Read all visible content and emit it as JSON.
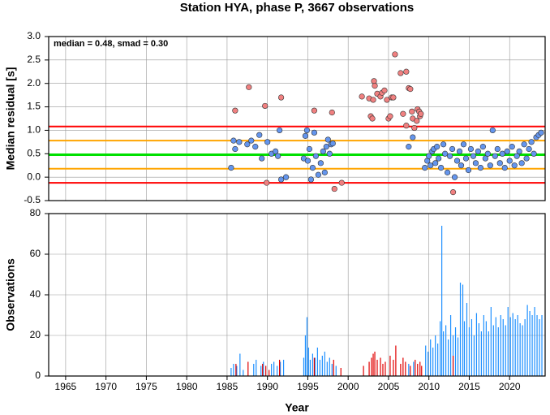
{
  "title": "Station HYA, phase P, 3667 observations",
  "chart_data": [
    {
      "type": "scatter",
      "ylabel": "Median residual [s]",
      "annotation": "median = 0.48, smad = 0.30",
      "xlim": [
        1962.9,
        2024.4
      ],
      "ylim": [
        -0.5,
        3.0
      ],
      "yticks": [
        -0.5,
        {
          "value": 0,
          "label": "0.0"
        },
        0.5,
        {
          "value": 1,
          "label": "1.0"
        },
        1.5,
        {
          "value": 2,
          "label": "2.0"
        },
        2.5,
        {
          "value": 3,
          "label": "3.0"
        }
      ],
      "grid": true,
      "hlines": [
        {
          "value": 0.48,
          "color": "#00e000"
        },
        {
          "value": 0.18,
          "color": "#ffa500"
        },
        {
          "value": 0.78,
          "color": "#ffa500"
        },
        {
          "value": -0.12,
          "color": "#ff0000"
        },
        {
          "value": 1.08,
          "color": "#ff0000"
        }
      ],
      "series": [
        {
          "color": "#6495ed",
          "x": [
            1985.5,
            1985.8,
            1986,
            1986.5,
            1987.5,
            1988,
            1988.5,
            1989,
            1989.3,
            1990,
            1990.5,
            1991,
            1991.3,
            1991.5,
            1991.7,
            1992.3,
            1994.5,
            1994.7,
            1994.9,
            1995,
            1995.2,
            1995.4,
            1995.6,
            1995.8,
            1996,
            1996.3,
            1996.6,
            1996.9,
            1997.1,
            1997.3,
            1997.5,
            1997.7,
            1997.9,
            1998.1,
            2007.5,
            2008,
            2009.5,
            2009.8,
            2010,
            2010.2,
            2010.4,
            2010.6,
            2010.8,
            2011,
            2011.2,
            2011.5,
            2011.8,
            2012,
            2012.3,
            2012.6,
            2012.9,
            2013.2,
            2013.5,
            2013.8,
            2014,
            2014.3,
            2014.6,
            2014.9,
            2015.2,
            2015.5,
            2015.8,
            2016.1,
            2016.4,
            2016.7,
            2017,
            2017.3,
            2017.6,
            2017.9,
            2018.2,
            2018.5,
            2018.8,
            2019.1,
            2019.4,
            2019.7,
            2020,
            2020.3,
            2020.6,
            2020.9,
            2021.2,
            2021.5,
            2021.8,
            2022.1,
            2022.4,
            2022.7,
            2023,
            2023.3,
            2023.6,
            2023.9
          ],
          "values": [
            0.2,
            0.78,
            0.6,
            0.75,
            0.7,
            0.78,
            0.65,
            0.9,
            0.4,
            0.75,
            0.5,
            0.55,
            0.45,
            1.0,
            -0.05,
            0.0,
            0.4,
            0.88,
            1.0,
            0.35,
            0.6,
            -0.05,
            0.2,
            0.95,
            0.45,
            0.05,
            0.3,
            0.55,
            0.1,
            0.65,
            0.8,
            0.5,
            0.7,
            0.72,
            0.65,
            0.85,
            0.2,
            0.35,
            0.45,
            0.25,
            0.55,
            0.6,
            0.3,
            0.65,
            0.4,
            0.2,
            0.7,
            0.5,
            0.1,
            0.45,
            0.6,
            0.0,
            0.35,
            0.55,
            0.25,
            0.7,
            0.4,
            0.15,
            0.6,
            0.45,
            0.3,
            0.55,
            0.2,
            0.65,
            0.4,
            0.5,
            0.25,
            1.0,
            0.45,
            0.6,
            0.3,
            0.5,
            0.2,
            0.55,
            0.35,
            0.65,
            0.25,
            0.45,
            0.55,
            0.3,
            0.7,
            0.4,
            0.6,
            0.75,
            0.5,
            0.85,
            0.9,
            0.95
          ]
        },
        {
          "color": "#f08080",
          "x": [
            1986,
            1987.7,
            1989.7,
            1991.7,
            1989.9,
            1995.8,
            1998,
            1998.3,
            1999.2,
            2001.7,
            2002.6,
            2002.8,
            2003,
            2003.1,
            2003.2,
            2003.3,
            2003.6,
            2004,
            2004.2,
            2004.5,
            2004.8,
            2005,
            2005.2,
            2005.4,
            2005.6,
            2005.8,
            2006.5,
            2006.8,
            2007.2,
            2007.5,
            2007.7,
            2007.9,
            2008,
            2008.5,
            2008.6,
            2008.8,
            2008.9,
            2009,
            2013,
            2007.2,
            2008.2
          ],
          "values": [
            1.42,
            1.92,
            1.52,
            1.7,
            -0.12,
            1.42,
            1.38,
            -0.25,
            -0.12,
            1.72,
            1.68,
            1.3,
            1.25,
            1.65,
            2.05,
            1.95,
            1.78,
            1.72,
            1.8,
            1.85,
            1.65,
            1.25,
            1.3,
            1.7,
            1.7,
            2.62,
            2.22,
            1.35,
            2.25,
            1.9,
            1.88,
            1.4,
            1.25,
            1.2,
            1.45,
            1.4,
            1.3,
            1.35,
            -0.32,
            1.1,
            1.05
          ]
        }
      ]
    },
    {
      "type": "bar",
      "xlabel": "Year",
      "ylabel": "Observations",
      "xlim": [
        1962.9,
        2024.4
      ],
      "ylim": [
        0,
        80
      ],
      "xticks": [
        1965,
        1970,
        1975,
        1980,
        1985,
        1990,
        1995,
        2000,
        2005,
        2010,
        2015,
        2020
      ],
      "yticks": [
        0,
        20,
        40,
        60,
        80
      ],
      "grid": true,
      "series": [
        {
          "color": "#1e90ff",
          "x": [
            1985.5,
            1985.8,
            1986.2,
            1986.6,
            1987,
            1988.3,
            1988.6,
            1989.2,
            1989.5,
            1990.5,
            1990.8,
            1991.2,
            1991.6,
            1992,
            1994.5,
            1994.7,
            1994.9,
            1995.1,
            1995.3,
            1995.6,
            1995.9,
            1996.2,
            1996.5,
            1996.8,
            1997.1,
            1997.4,
            1997.7,
            1998,
            1998.5,
            2007.5,
            2008.1,
            2009.6,
            2009.9,
            2010.2,
            2010.5,
            2010.8,
            2011.1,
            2011.4,
            2011.6,
            2011.8,
            2012.1,
            2012.4,
            2012.7,
            2013,
            2013.3,
            2013.6,
            2013.9,
            2014.2,
            2014.4,
            2014.7,
            2015,
            2015.3,
            2015.6,
            2015.9,
            2016.2,
            2016.5,
            2016.8,
            2017.1,
            2017.4,
            2017.7,
            2018,
            2018.3,
            2018.6,
            2018.9,
            2019.2,
            2019.5,
            2019.8,
            2020.1,
            2020.4,
            2020.7,
            2021,
            2021.3,
            2021.6,
            2021.9,
            2022.2,
            2022.5,
            2022.8,
            2023.1,
            2023.4,
            2023.7,
            2024
          ],
          "values": [
            4,
            6,
            5,
            11,
            3,
            6,
            8,
            5,
            7,
            6,
            7,
            5,
            7,
            8,
            9,
            20,
            29,
            14,
            8,
            11,
            9,
            14,
            8,
            10,
            12,
            7,
            9,
            6,
            5,
            6,
            7,
            15,
            12,
            18,
            14,
            20,
            16,
            27,
            74,
            22,
            25,
            18,
            30,
            20,
            24,
            19,
            46,
            45,
            27,
            36,
            24,
            28,
            20,
            31,
            26,
            22,
            30,
            27,
            22,
            34,
            25,
            29,
            24,
            30,
            28,
            25,
            34,
            29,
            31,
            28,
            30,
            26,
            25,
            28,
            35,
            32,
            30,
            34,
            30,
            28,
            30
          ]
        },
        {
          "color": "#e00000",
          "x": [
            1986.1,
            1987.6,
            1989.4,
            1989.8,
            1990.2,
            1991.5,
            1995.8,
            1998.2,
            1999.1,
            2001.9,
            2002.6,
            2002.9,
            2003.1,
            2003.3,
            2003.6,
            2004,
            2004.3,
            2004.6,
            2005.2,
            2005.6,
            2005.9,
            2006.5,
            2006.8,
            2007.1,
            2007.7,
            2008.3,
            2008.6,
            2008.9,
            2009.1,
            2013
          ],
          "values": [
            6,
            7,
            6,
            5,
            3,
            8,
            9,
            8,
            4,
            5,
            7,
            9,
            11,
            12,
            8,
            9,
            6,
            7,
            10,
            8,
            15,
            6,
            9,
            7,
            5,
            8,
            6,
            7,
            5,
            10
          ]
        }
      ]
    }
  ]
}
